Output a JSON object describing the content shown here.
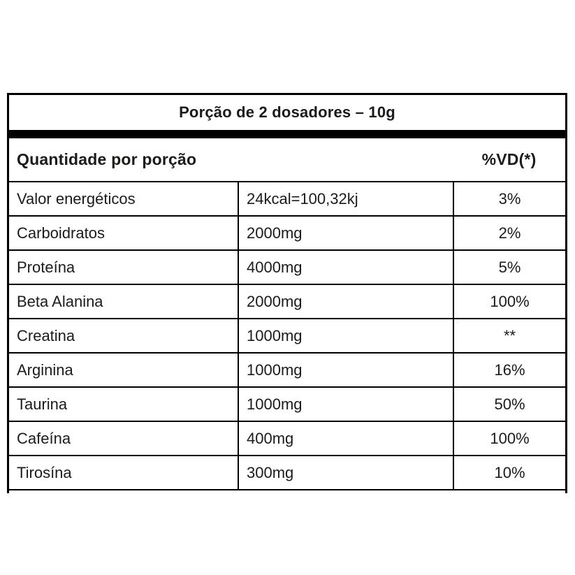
{
  "label": {
    "title": "Porção de 2 dosadores – 10g",
    "header": {
      "quantity": "Quantidade por porção",
      "daily_value": "%VD(*)"
    },
    "rows": [
      {
        "nutrient": "Valor energéticos",
        "amount": "24kcal=100,32kj",
        "dv": "3%"
      },
      {
        "nutrient": "Carboidratos",
        "amount": "2000mg",
        "dv": "2%"
      },
      {
        "nutrient": "Proteína",
        "amount": "4000mg",
        "dv": "5%"
      },
      {
        "nutrient": "Beta Alanina",
        "amount": "2000mg",
        "dv": "100%"
      },
      {
        "nutrient": "Creatina",
        "amount": "1000mg",
        "dv": "**"
      },
      {
        "nutrient": "Arginina",
        "amount": "1000mg",
        "dv": "16%"
      },
      {
        "nutrient": "Taurina",
        "amount": "1000mg",
        "dv": "50%"
      },
      {
        "nutrient": "Cafeína",
        "amount": "400mg",
        "dv": "100%"
      },
      {
        "nutrient": "Tirosína",
        "amount": "300mg",
        "dv": "10%"
      }
    ],
    "colors": {
      "text": "#1d1b1a",
      "line": "#000000",
      "background": "#ffffff"
    }
  }
}
